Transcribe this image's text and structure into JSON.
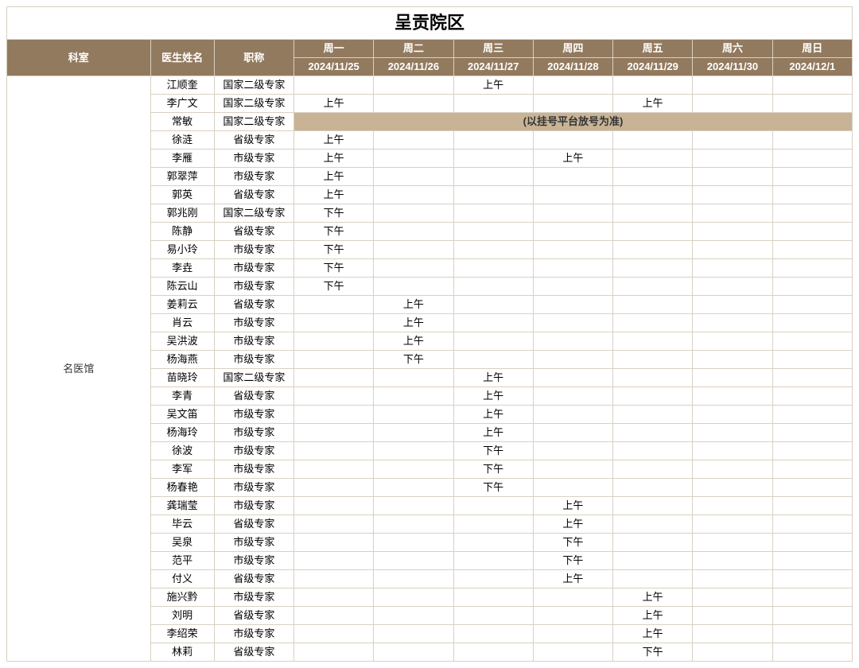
{
  "title": "呈贡院区",
  "headers": {
    "dept": "科室",
    "name": "医生姓名",
    "title": "职称",
    "days": [
      {
        "dow": "周一",
        "date": "2024/11/25"
      },
      {
        "dow": "周二",
        "date": "2024/11/26"
      },
      {
        "dow": "周三",
        "date": "2024/11/27"
      },
      {
        "dow": "周四",
        "date": "2024/11/28"
      },
      {
        "dow": "周五",
        "date": "2024/11/29"
      },
      {
        "dow": "周六",
        "date": "2024/11/30"
      },
      {
        "dow": "周日",
        "date": "2024/12/1"
      }
    ]
  },
  "department": "名医馆",
  "spanned_note": "(以挂号平台放号为准)",
  "colors": {
    "header_bg": "#927a5f",
    "header_fg": "#ffffff",
    "border": "#d9d0c3",
    "note_bg": "#c8b397",
    "body_bg": "#ffffff"
  },
  "rows": [
    {
      "name": "江顺奎",
      "title": "国家二级专家",
      "d": [
        "",
        "",
        "上午",
        "",
        "",
        "",
        ""
      ]
    },
    {
      "name": "李广文",
      "title": "国家二级专家",
      "d": [
        "上午",
        "",
        "",
        "",
        "上午",
        "",
        ""
      ]
    },
    {
      "name": "常敏",
      "title": "国家二级专家",
      "spanned": true
    },
    {
      "name": "徐涟",
      "title": "省级专家",
      "d": [
        "上午",
        "",
        "",
        "",
        "",
        "",
        ""
      ]
    },
    {
      "name": "李雁",
      "title": "市级专家",
      "d": [
        "上午",
        "",
        "",
        "上午",
        "",
        "",
        ""
      ]
    },
    {
      "name": "郭翠萍",
      "title": "市级专家",
      "d": [
        "上午",
        "",
        "",
        "",
        "",
        "",
        ""
      ]
    },
    {
      "name": "郭英",
      "title": "省级专家",
      "d": [
        "上午",
        "",
        "",
        "",
        "",
        "",
        ""
      ]
    },
    {
      "name": "郭兆刚",
      "title": "国家二级专家",
      "d": [
        "下午",
        "",
        "",
        "",
        "",
        "",
        ""
      ]
    },
    {
      "name": "陈静",
      "title": "省级专家",
      "d": [
        "下午",
        "",
        "",
        "",
        "",
        "",
        ""
      ]
    },
    {
      "name": "易小玲",
      "title": "市级专家",
      "d": [
        "下午",
        "",
        "",
        "",
        "",
        "",
        ""
      ]
    },
    {
      "name": "李垚",
      "title": "市级专家",
      "d": [
        "下午",
        "",
        "",
        "",
        "",
        "",
        ""
      ]
    },
    {
      "name": "陈云山",
      "title": "市级专家",
      "d": [
        "下午",
        "",
        "",
        "",
        "",
        "",
        ""
      ]
    },
    {
      "name": "姜莉云",
      "title": "省级专家",
      "d": [
        "",
        "上午",
        "",
        "",
        "",
        "",
        ""
      ]
    },
    {
      "name": "肖云",
      "title": "市级专家",
      "d": [
        "",
        "上午",
        "",
        "",
        "",
        "",
        ""
      ]
    },
    {
      "name": "吴洪波",
      "title": "市级专家",
      "d": [
        "",
        "上午",
        "",
        "",
        "",
        "",
        ""
      ]
    },
    {
      "name": "杨海燕",
      "title": "市级专家",
      "d": [
        "",
        "下午",
        "",
        "",
        "",
        "",
        ""
      ]
    },
    {
      "name": "苗晓玲",
      "title": "国家二级专家",
      "d": [
        "",
        "",
        "上午",
        "",
        "",
        "",
        ""
      ]
    },
    {
      "name": "李青",
      "title": "省级专家",
      "d": [
        "",
        "",
        "上午",
        "",
        "",
        "",
        ""
      ]
    },
    {
      "name": "吴文笛",
      "title": "市级专家",
      "d": [
        "",
        "",
        "上午",
        "",
        "",
        "",
        ""
      ]
    },
    {
      "name": "杨海玲",
      "title": "市级专家",
      "d": [
        "",
        "",
        "上午",
        "",
        "",
        "",
        ""
      ]
    },
    {
      "name": "徐波",
      "title": "市级专家",
      "d": [
        "",
        "",
        "下午",
        "",
        "",
        "",
        ""
      ]
    },
    {
      "name": "李军",
      "title": "市级专家",
      "d": [
        "",
        "",
        "下午",
        "",
        "",
        "",
        ""
      ]
    },
    {
      "name": "杨春艳",
      "title": "市级专家",
      "d": [
        "",
        "",
        "下午",
        "",
        "",
        "",
        ""
      ]
    },
    {
      "name": "龚瑞莹",
      "title": "市级专家",
      "d": [
        "",
        "",
        "",
        "上午",
        "",
        "",
        ""
      ]
    },
    {
      "name": "毕云",
      "title": "省级专家",
      "d": [
        "",
        "",
        "",
        "上午",
        "",
        "",
        ""
      ]
    },
    {
      "name": "吴泉",
      "title": "市级专家",
      "d": [
        "",
        "",
        "",
        "下午",
        "",
        "",
        ""
      ]
    },
    {
      "name": "范平",
      "title": "市级专家",
      "d": [
        "",
        "",
        "",
        "下午",
        "",
        "",
        ""
      ]
    },
    {
      "name": "付义",
      "title": "省级专家",
      "d": [
        "",
        "",
        "",
        "上午",
        "",
        "",
        ""
      ]
    },
    {
      "name": "施兴黔",
      "title": "市级专家",
      "d": [
        "",
        "",
        "",
        "",
        "上午",
        "",
        ""
      ]
    },
    {
      "name": "刘明",
      "title": "省级专家",
      "d": [
        "",
        "",
        "",
        "",
        "上午",
        "",
        ""
      ]
    },
    {
      "name": "李绍荣",
      "title": "市级专家",
      "d": [
        "",
        "",
        "",
        "",
        "上午",
        "",
        ""
      ]
    },
    {
      "name": "林莉",
      "title": "省级专家",
      "d": [
        "",
        "",
        "",
        "",
        "下午",
        "",
        ""
      ]
    }
  ]
}
